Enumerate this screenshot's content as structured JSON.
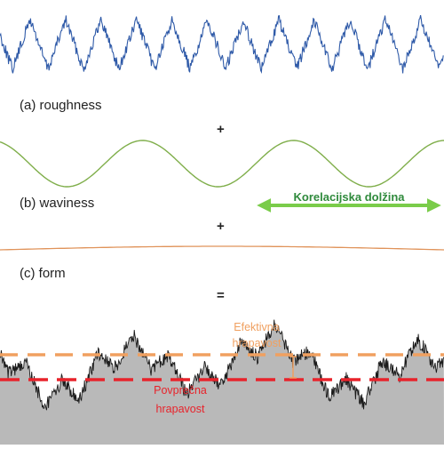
{
  "panels": {
    "roughness": {
      "label": "(a) roughness",
      "color": "#2f5aa8"
    },
    "waviness": {
      "label": "(b) waviness",
      "color": "#7fae4a"
    },
    "form": {
      "label": "(c) form",
      "color": "#e0935a"
    },
    "sum": {
      "line_color": "#1a1a1a",
      "fill_color": "#b9b9b9"
    }
  },
  "operators": {
    "plus1": "+",
    "plus2": "+",
    "equals": "="
  },
  "annotations": {
    "correlation_length": {
      "text": "Korelacijska dolžina",
      "color": "#2f8a3c"
    },
    "effective_roughness": {
      "line1": "Efektivna",
      "line2": "hrapavost",
      "color": "#f0a060"
    },
    "average_roughness": {
      "line1": "Povprečna",
      "line2": "hrapavost",
      "color": "#e8232b"
    }
  }
}
